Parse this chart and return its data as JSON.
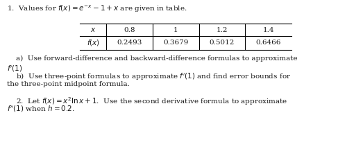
{
  "bg_color": "#ffffff",
  "text_color": "#1a1a1a",
  "figsize": [
    4.87,
    2.15
  ],
  "dpi": 100,
  "table_x_vals": [
    "0.8",
    "1",
    "1.2",
    "1.4"
  ],
  "table_fx_vals": [
    "0.2493",
    "0.3679",
    "0.5012",
    "0.6466"
  ],
  "fs": 7.5,
  "fs_math": 7.5
}
